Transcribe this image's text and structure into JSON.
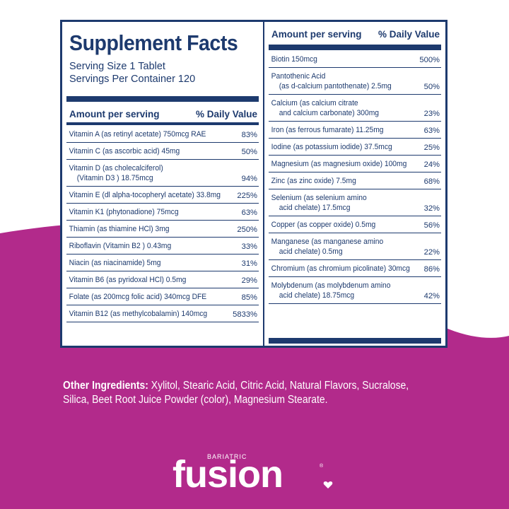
{
  "title": "Supplement Facts",
  "serving_size": "Serving Size 1 Tablet",
  "servings_per_container": "Servings Per Container 120",
  "header": {
    "amount": "Amount per serving",
    "daily_value": "% Daily Value"
  },
  "left_rows": [
    {
      "line1": "Vitamin A (as retinyl acetate) 750mcg RAE",
      "dv": "83%"
    },
    {
      "line1": "Vitamin C (as ascorbic acid) 45mg",
      "dv": "50%"
    },
    {
      "line1": "Vitamin D (as cholecalciferol)",
      "line2": "(Vitamin D3 ) 18.75mcg",
      "dv": "94%"
    },
    {
      "line1": "Vitamin E (dl alpha-tocopheryl acetate) 33.8mg",
      "dv": "225%"
    },
    {
      "line1": "Vitamin K1 (phytonadione) 75mcg",
      "dv": "63%"
    },
    {
      "line1": "Thiamin (as thiamine HCl) 3mg",
      "dv": "250%"
    },
    {
      "line1": "Riboflavin (Vitamin B2 ) 0.43mg",
      "dv": "33%"
    },
    {
      "line1": "Niacin (as niacinamide) 5mg",
      "dv": "31%"
    },
    {
      "line1": "Vitamin B6 (as pyridoxal HCl) 0.5mg",
      "dv": "29%"
    },
    {
      "line1": "Folate (as 200mcg folic acid) 340mcg DFE",
      "dv": "85%"
    },
    {
      "line1": "Vitamin B12 (as methylcobalamin) 140mcg",
      "dv": "5833%"
    }
  ],
  "right_rows": [
    {
      "line1": "Biotin 150mcg",
      "dv": "500%"
    },
    {
      "line1": "Pantothenic Acid",
      "line2": "(as d-calcium pantothenate) 2.5mg",
      "dv": "50%"
    },
    {
      "line1": "Calcium (as calcium citrate",
      "line2": "and calcium carbonate) 300mg",
      "dv": "23%"
    },
    {
      "line1": "Iron (as ferrous fumarate) 11.25mg",
      "dv": "63%"
    },
    {
      "line1": "Iodine (as potassium iodide) 37.5mcg",
      "dv": "25%"
    },
    {
      "line1": "Magnesium (as magnesium oxide) 100mg",
      "dv": "24%"
    },
    {
      "line1": "Zinc (as zinc oxide) 7.5mg",
      "dv": "68%"
    },
    {
      "line1": "Selenium (as selenium amino",
      "line2": "acid chelate) 17.5mcg",
      "dv": "32%"
    },
    {
      "line1": "Copper (as copper oxide) 0.5mg",
      "dv": "56%"
    },
    {
      "line1": "Manganese (as manganese amino",
      "line2": "acid chelate) 0.5mg",
      "dv": "22%"
    },
    {
      "line1": "Chromium (as chromium picolinate) 30mcg",
      "dv": "86%"
    },
    {
      "line1": "Molybdenum (as molybdenum amino",
      "line2": "acid chelate) 18.75mcg",
      "dv": "42%"
    }
  ],
  "other_ingredients": {
    "label": "Other Ingredients:",
    "line1": " Xylitol, Stearic Acid, Citric Acid, Natural Flavors, Sucralose,",
    "line2": "Silica, Beet Root Juice Powder (color), Magnesium Stearate."
  },
  "brand": {
    "small": "BARIATRIC",
    "name": "fusion",
    "reg": "®"
  },
  "colors": {
    "navy": "#1d3a6e",
    "magenta": "#b22a8b",
    "white": "#ffffff"
  },
  "icons": {
    "heart": "heart-icon"
  }
}
